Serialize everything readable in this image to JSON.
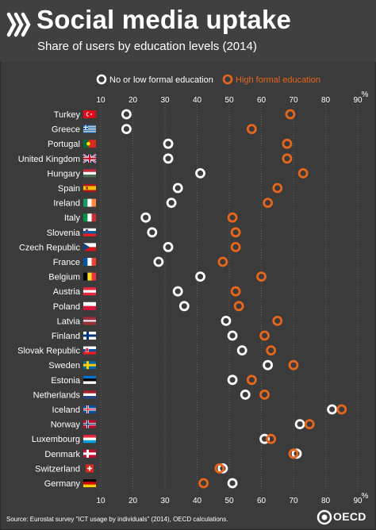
{
  "header": {
    "title": "Social media uptake",
    "subtitle": "Share of users by education levels (2014)"
  },
  "colors": {
    "background": "#3b3b3b",
    "low_education": "#ffffff",
    "high_education": "#e8661c",
    "grid": "#6a6a6a"
  },
  "source": "Source: Eurostat survey \"ICT usage by individuals\" (2014), OECD calculations.",
  "oecd_logo_text": "OECD",
  "chart_data": {
    "type": "scatter",
    "unit": "%",
    "xlim": [
      10,
      90
    ],
    "x_ticks": [
      10,
      20,
      30,
      40,
      50,
      60,
      70,
      80,
      90
    ],
    "grid": true,
    "legend_position": "top",
    "categories": [
      "Turkey",
      "Greece",
      "Portugal",
      "United Kingdom",
      "Hungary",
      "Spain",
      "Ireland",
      "Italy",
      "Slovenia",
      "Czech Republic",
      "France",
      "Belgium",
      "Austria",
      "Poland",
      "Latvia",
      "Finland",
      "Slovak Republic",
      "Sweden",
      "Estonia",
      "Netherlands",
      "Iceland",
      "Norway",
      "Luxembourg",
      "Denmark",
      "Switzerland",
      "Germany"
    ],
    "flags": [
      "turkey-flag-icon",
      "greece-flag-icon",
      "portugal-flag-icon",
      "united-kingdom-flag-icon",
      "hungary-flag-icon",
      "spain-flag-icon",
      "ireland-flag-icon",
      "italy-flag-icon",
      "slovenia-flag-icon",
      "czech-republic-flag-icon",
      "france-flag-icon",
      "belgium-flag-icon",
      "austria-flag-icon",
      "poland-flag-icon",
      "latvia-flag-icon",
      "finland-flag-icon",
      "slovak-republic-flag-icon",
      "sweden-flag-icon",
      "estonia-flag-icon",
      "netherlands-flag-icon",
      "iceland-flag-icon",
      "norway-flag-icon",
      "luxembourg-flag-icon",
      "denmark-flag-icon",
      "switzerland-flag-icon",
      "germany-flag-icon"
    ],
    "series": [
      {
        "name": "No or low formal education",
        "color": "#ffffff",
        "values": [
          18,
          18,
          31,
          31,
          41,
          34,
          32,
          24,
          26,
          31,
          28,
          41,
          34,
          36,
          49,
          51,
          54,
          62,
          51,
          55,
          82,
          72,
          61,
          71,
          48,
          51
        ]
      },
      {
        "name": "High formal education",
        "color": "#e8661c",
        "values": [
          69,
          57,
          68,
          68,
          73,
          65,
          62,
          51,
          52,
          52,
          48,
          60,
          52,
          53,
          65,
          61,
          63,
          70,
          57,
          61,
          85,
          75,
          63,
          70,
          47,
          42
        ]
      }
    ]
  }
}
